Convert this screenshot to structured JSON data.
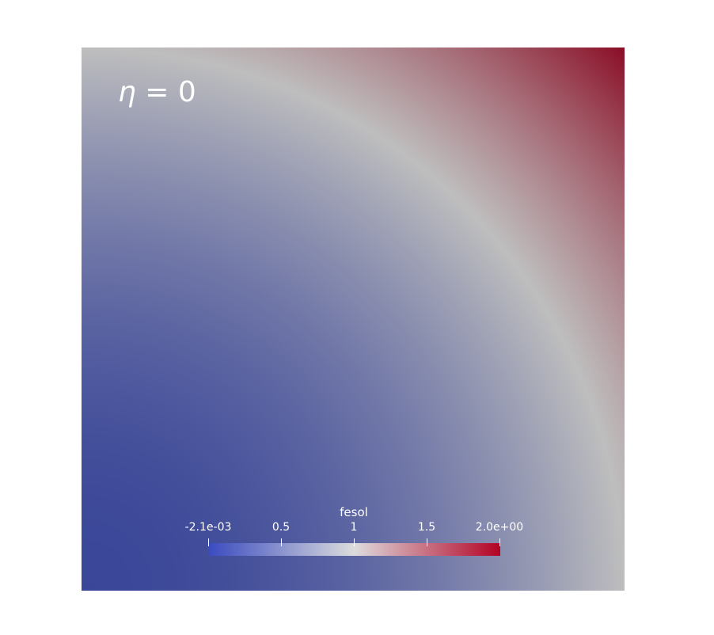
{
  "annotation": {
    "symbol": "η",
    "rest": " = 0"
  },
  "colorbar": {
    "title": "fesol",
    "range": [
      -0.0021,
      2.0
    ],
    "colormap": [
      "#3b4cc0",
      "#dddddd",
      "#b40426"
    ],
    "ticks": [
      {
        "value": -0.0021,
        "label": "-2.1e-03"
      },
      {
        "value": 0.5,
        "label": "0.5"
      },
      {
        "value": 1,
        "label": "1"
      },
      {
        "value": 1.5,
        "label": "1.5"
      },
      {
        "value": 2.0,
        "label": "2.0e+00"
      }
    ]
  }
}
